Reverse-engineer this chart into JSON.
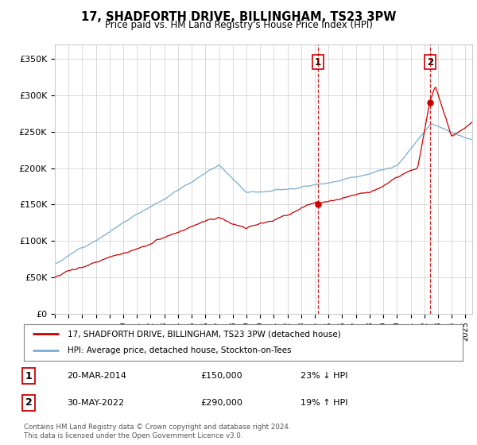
{
  "title": "17, SHADFORTH DRIVE, BILLINGHAM, TS23 3PW",
  "subtitle": "Price paid vs. HM Land Registry's House Price Index (HPI)",
  "ylim": [
    0,
    370000
  ],
  "yticks": [
    0,
    50000,
    100000,
    150000,
    200000,
    250000,
    300000,
    350000
  ],
  "hpi_color": "#7aadd4",
  "price_color": "#cc0000",
  "grid_color": "#cccccc",
  "bg_color": "#ffffff",
  "legend_line1": "17, SHADFORTH DRIVE, BILLINGHAM, TS23 3PW (detached house)",
  "legend_line2": "HPI: Average price, detached house, Stockton-on-Tees",
  "sale1_date": "20-MAR-2014",
  "sale1_price": "£150,000",
  "sale1_pct": "23% ↓ HPI",
  "sale2_date": "30-MAY-2022",
  "sale2_price": "£290,000",
  "sale2_pct": "19% ↑ HPI",
  "footer": "Contains HM Land Registry data © Crown copyright and database right 2024.\nThis data is licensed under the Open Government Licence v3.0.",
  "sale1_year": 2014.21,
  "sale1_value": 150000,
  "sale2_year": 2022.41,
  "sale2_value": 290000
}
